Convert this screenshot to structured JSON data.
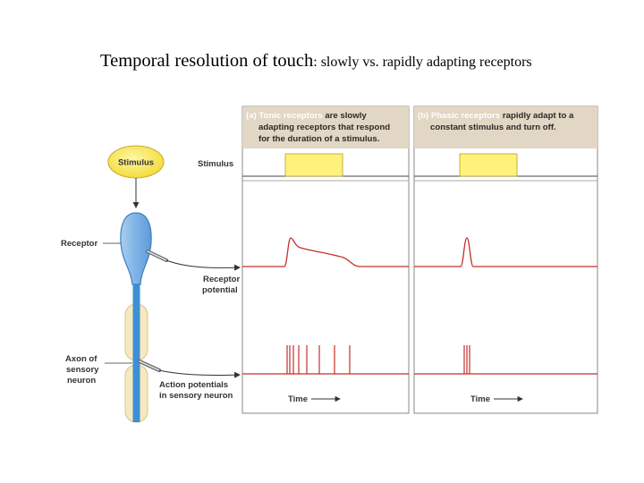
{
  "title": {
    "main": "Temporal resolution of touch",
    "sub": ": slowly vs. rapidly adapting receptors"
  },
  "figure": {
    "stimulus_bubble": "Stimulus",
    "labels": {
      "receptor": "Receptor",
      "axon": [
        "Axon of",
        "sensory",
        "neuron"
      ],
      "stimulus_row": "Stimulus",
      "receptor_potential": [
        "Receptor",
        "potential"
      ],
      "action_potentials": [
        "Action potentials",
        "in sensory neuron"
      ],
      "time": "Time"
    },
    "panel_a": {
      "key": "(a) Tonic receptors",
      "line1_rest": " are slowly",
      "line2": "adapting receptors that respond",
      "line3": "for the duration of a stimulus."
    },
    "panel_b": {
      "key": "(b) Phasic receptors",
      "line1_rest": " rapidly adapt to a",
      "line2": "constant stimulus and turn off."
    },
    "colors": {
      "header_bg": "#e2d6c4",
      "stimulus_fill": "#fff27a",
      "trace": "#c4302b",
      "neuron_blue": "#3d8fd6",
      "myelin": "#f6e9bd"
    }
  }
}
